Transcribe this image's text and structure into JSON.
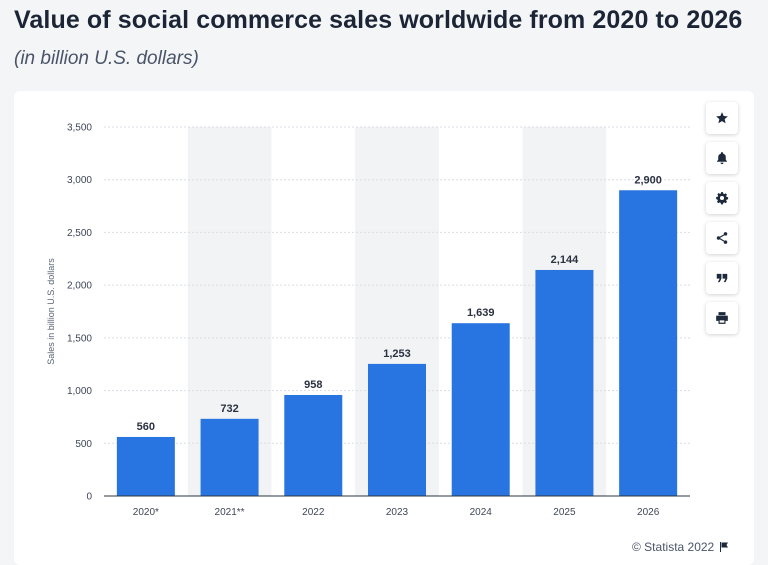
{
  "header": {
    "title": "Value of social commerce sales worldwide from 2020 to 2026",
    "subtitle": "(in billion U.S. dollars)"
  },
  "toolbar": {
    "buttons": [
      {
        "icon": "star-icon"
      },
      {
        "icon": "bell-icon"
      },
      {
        "icon": "gear-icon"
      },
      {
        "icon": "share-icon"
      },
      {
        "icon": "quote-icon"
      },
      {
        "icon": "print-icon"
      }
    ]
  },
  "footer": {
    "credit": "© Statista 2022",
    "flag_icon": "flag-icon"
  },
  "colors": {
    "bar": "#2874e0",
    "stripe": "#f2f3f5",
    "grid": "#d9dde3"
  },
  "chart_data": {
    "type": "bar",
    "title": "Value of social commerce sales worldwide from 2020 to 2026",
    "subtitle": "(in billion U.S. dollars)",
    "xlabel": "",
    "ylabel": "Sales in billion U.S. dollars",
    "categories": [
      "2020*",
      "2021**",
      "2022",
      "2023",
      "2024",
      "2025",
      "2026"
    ],
    "values": [
      560,
      732,
      958,
      1253,
      1639,
      2144,
      2900
    ],
    "value_labels": [
      "560",
      "732",
      "958",
      "1,253",
      "1,639",
      "2,144",
      "2,900"
    ],
    "ylim": [
      0,
      3500
    ],
    "yticks": [
      0,
      500,
      1000,
      1500,
      2000,
      2500,
      3000,
      3500
    ],
    "ytick_labels": [
      "0",
      "500",
      "1,000",
      "1,500",
      "2,000",
      "2,500",
      "3,000",
      "3,500"
    ],
    "grid": true,
    "legend": "none"
  }
}
